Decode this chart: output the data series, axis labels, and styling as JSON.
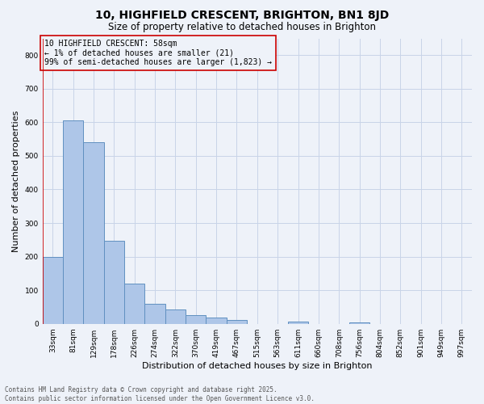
{
  "title": "10, HIGHFIELD CRESCENT, BRIGHTON, BN1 8JD",
  "subtitle": "Size of property relative to detached houses in Brighton",
  "xlabel": "Distribution of detached houses by size in Brighton",
  "ylabel": "Number of detached properties",
  "bar_labels": [
    "33sqm",
    "81sqm",
    "129sqm",
    "178sqm",
    "226sqm",
    "274sqm",
    "322sqm",
    "370sqm",
    "419sqm",
    "467sqm",
    "515sqm",
    "563sqm",
    "611sqm",
    "660sqm",
    "708sqm",
    "756sqm",
    "804sqm",
    "852sqm",
    "901sqm",
    "949sqm",
    "997sqm"
  ],
  "bar_values": [
    200,
    605,
    540,
    248,
    120,
    60,
    42,
    25,
    18,
    12,
    0,
    0,
    7,
    0,
    0,
    5,
    0,
    0,
    0,
    0,
    0
  ],
  "bar_color": "#aec6e8",
  "bar_edge_color": "#6090c0",
  "highlight_line_color": "#cc0000",
  "annotation_title": "10 HIGHFIELD CRESCENT: 58sqm",
  "annotation_line1": "← 1% of detached houses are smaller (21)",
  "annotation_line2": "99% of semi-detached houses are larger (1,823) →",
  "annotation_box_color": "#cc0000",
  "background_color": "#eef2f9",
  "grid_color": "#c8d4e8",
  "ylim": [
    0,
    850
  ],
  "yticks": [
    0,
    100,
    200,
    300,
    400,
    500,
    600,
    700,
    800
  ],
  "footer_line1": "Contains HM Land Registry data © Crown copyright and database right 2025.",
  "footer_line2": "Contains public sector information licensed under the Open Government Licence v3.0.",
  "title_fontsize": 10,
  "subtitle_fontsize": 8.5,
  "tick_fontsize": 6.5,
  "label_fontsize": 8,
  "annotation_fontsize": 7,
  "footer_fontsize": 5.5
}
